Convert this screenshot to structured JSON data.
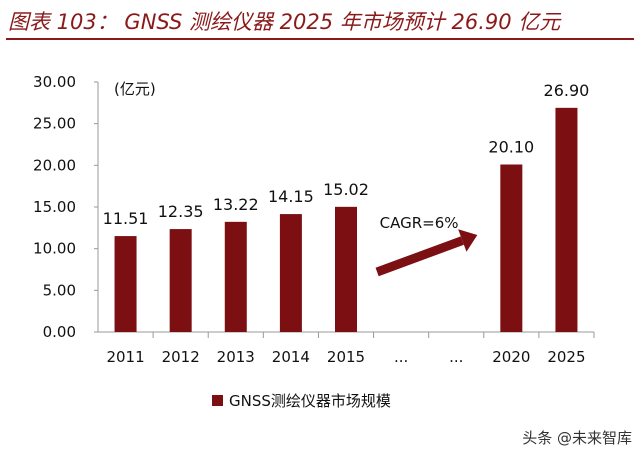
{
  "figure": {
    "title": "图表 103： GNSS 测绘仪器 2025 年市场预计 26.90 亿元",
    "watermark": "头条 @未来智库"
  },
  "chart_data": {
    "type": "bar",
    "unit_label": "(亿元)",
    "categories": [
      "2011",
      "2012",
      "2013",
      "2014",
      "2015",
      "...",
      "...",
      "2020",
      "2025"
    ],
    "series": [
      {
        "name": "GNSS测绘仪器市场规模",
        "values": [
          11.51,
          12.35,
          13.22,
          14.15,
          15.02,
          null,
          null,
          20.1,
          26.9
        ],
        "value_labels": [
          "11.51",
          "12.35",
          "13.22",
          "14.15",
          "15.02",
          "",
          "",
          "20.10",
          "26.90"
        ]
      }
    ],
    "ylim": [
      0,
      30
    ],
    "yticks": [
      "0.00",
      "5.00",
      "10.00",
      "15.00",
      "20.00",
      "25.00",
      "30.00"
    ],
    "grid": false,
    "bar_color": "#7b0f12",
    "annotation": {
      "text": "CAGR=6%",
      "arrow": true
    },
    "legend_position": "bottom"
  }
}
